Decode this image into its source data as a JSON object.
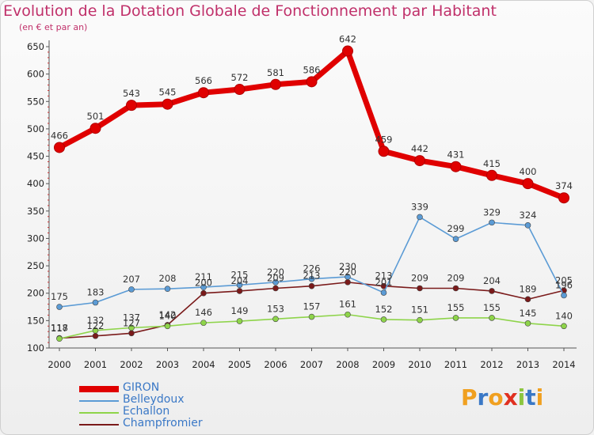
{
  "title": "Evolution de la Dotation Globale de Fonctionnement par Habitant",
  "subtitle": "(en € et par an)",
  "brand": {
    "letters": [
      "P",
      "r",
      "o",
      "x",
      "i",
      "t",
      "i"
    ],
    "colors": [
      "#f0a020",
      "#3a78c6",
      "#f0a020",
      "#e03020",
      "#8cc63f",
      "#3a78c6",
      "#f0a020"
    ]
  },
  "chart_data": {
    "type": "line",
    "title": "Evolution de la Dotation Globale de Fonctionnement par Habitant",
    "subtitle": "(en € et par an)",
    "xlabel": "",
    "ylabel": "",
    "categories": [
      "2000",
      "2001",
      "2002",
      "2003",
      "2004",
      "2005",
      "2006",
      "2007",
      "2008",
      "2009",
      "2010",
      "2011",
      "2012",
      "2013",
      "2014"
    ],
    "ylim": [
      100,
      650
    ],
    "yticks": [
      100,
      150,
      200,
      250,
      300,
      350,
      400,
      450,
      500,
      550,
      600,
      650
    ],
    "grid": false,
    "legend_position": "bottom-left",
    "series": [
      {
        "name": "GIRON",
        "color": "#e00000",
        "emphasis": true,
        "values": [
          466,
          501,
          543,
          545,
          566,
          572,
          581,
          586,
          642,
          459,
          442,
          431,
          415,
          400,
          374
        ]
      },
      {
        "name": "Belleydoux",
        "color": "#5b9bd5",
        "emphasis": false,
        "values": [
          175,
          183,
          207,
          208,
          211,
          215,
          220,
          226,
          230,
          201,
          339,
          299,
          329,
          324,
          196
        ]
      },
      {
        "name": "Echallon",
        "color": "#8ed44a",
        "emphasis": false,
        "values": [
          117,
          132,
          137,
          140,
          146,
          149,
          153,
          157,
          161,
          152,
          151,
          155,
          155,
          145,
          140
        ]
      },
      {
        "name": "Champfromier",
        "color": "#7a1a1a",
        "emphasis": false,
        "values": [
          118,
          122,
          127,
          142,
          200,
          204,
          209,
          213,
          220,
          213,
          209,
          209,
          204,
          189,
          205
        ]
      }
    ]
  }
}
